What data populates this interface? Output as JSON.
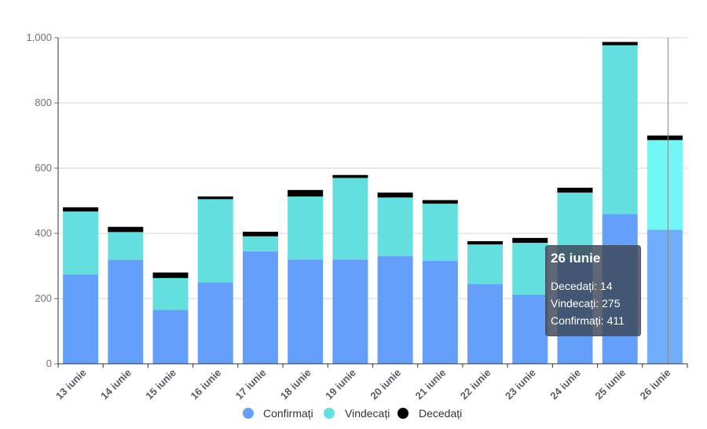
{
  "chart_data": {
    "type": "bar",
    "stacked": true,
    "title": "",
    "xlabel": "",
    "ylabel": "",
    "ylim": [
      0,
      1000
    ],
    "yticks": [
      0,
      200,
      400,
      600,
      800,
      1000
    ],
    "ytick_labels": [
      "0",
      "200",
      "400",
      "600",
      "800",
      "1,000"
    ],
    "grid": true,
    "legend_position": "bottom",
    "categories": [
      "13 iunie",
      "14 iunie",
      "15 iunie",
      "16 iunie",
      "17 iunie",
      "18 iunie",
      "19 iunie",
      "20 iunie",
      "21 iunie",
      "22 iunie",
      "23 iunie",
      "24 iunie",
      "25 iunie",
      "26 iunie"
    ],
    "series": [
      {
        "name": "Confirmați",
        "color": "#659ffc",
        "highlight_color": "#70aefc",
        "values": [
          274,
          319,
          165,
          250,
          345,
          320,
          320,
          330,
          316,
          245,
          212,
          319,
          459,
          411
        ]
      },
      {
        "name": "Vindecați",
        "color": "#63dfdf",
        "highlight_color": "#72f7f7",
        "values": [
          193,
          85,
          98,
          255,
          46,
          193,
          250,
          180,
          175,
          121,
          159,
          206,
          518,
          275
        ]
      },
      {
        "name": "Decedați",
        "color": "#000000",
        "highlight_color": "#000000",
        "values": [
          13,
          16,
          17,
          8,
          14,
          20,
          9,
          15,
          11,
          10,
          15,
          15,
          10,
          14
        ]
      }
    ],
    "highlighted_category": "26 iunie"
  },
  "tooltip": {
    "title": "26 iunie",
    "rows": [
      {
        "label": "Decedați: 14"
      },
      {
        "label": "Vindecați: 275"
      },
      {
        "label": "Confirmați: 411"
      }
    ]
  }
}
